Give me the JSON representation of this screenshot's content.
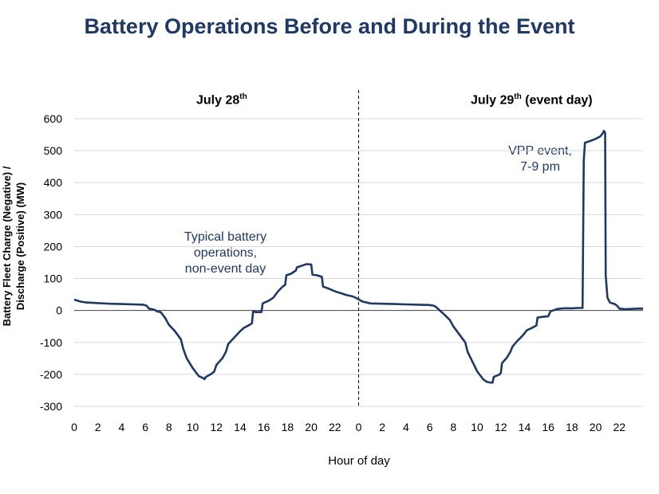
{
  "chart_data": {
    "type": "line",
    "title": "Battery Operations Before and During the Event",
    "xlabel": "Hour of day",
    "ylabel_line1": "Battery Fleet Charge (Negative) /",
    "ylabel_line2": "Discharge (Positive) (MW)",
    "ylim": [
      -300,
      600
    ],
    "yticks": [
      -300,
      -200,
      -100,
      0,
      100,
      200,
      300,
      400,
      500,
      600
    ],
    "xticks": [
      "0",
      "2",
      "4",
      "6",
      "8",
      "10",
      "12",
      "14",
      "16",
      "18",
      "20",
      "22",
      "0",
      "2",
      "4",
      "6",
      "8",
      "10",
      "12",
      "14",
      "16",
      "18",
      "20",
      "22"
    ],
    "grid": true,
    "panels": [
      {
        "label_main": "July 28",
        "label_sup": "th",
        "label_rest": ""
      },
      {
        "label_main": "July 29",
        "label_sup": "th",
        "label_rest": " (event day)"
      }
    ],
    "annotations": [
      {
        "lines": [
          "Typical battery",
          "operations,",
          "non-event day"
        ]
      },
      {
        "lines": [
          "VPP event,",
          "7-9 pm"
        ]
      }
    ],
    "series": [
      {
        "color": "#1f3864",
        "points": [
          [
            0,
            34
          ],
          [
            0.5,
            28
          ],
          [
            1,
            25
          ],
          [
            2,
            23
          ],
          [
            3,
            21
          ],
          [
            4,
            20
          ],
          [
            5,
            19
          ],
          [
            5.8,
            18
          ],
          [
            6.1,
            15
          ],
          [
            6.3,
            6
          ],
          [
            6.8,
            2
          ],
          [
            7,
            -3
          ],
          [
            7.3,
            -5
          ],
          [
            7.7,
            -25
          ],
          [
            8,
            -45
          ],
          [
            8.5,
            -65
          ],
          [
            9,
            -90
          ],
          [
            9.2,
            -120
          ],
          [
            9.5,
            -150
          ],
          [
            10,
            -180
          ],
          [
            10.5,
            -205
          ],
          [
            10.9,
            -212
          ],
          [
            11,
            -215
          ],
          [
            11.1,
            -208
          ],
          [
            11.5,
            -200
          ],
          [
            11.8,
            -192
          ],
          [
            12,
            -170
          ],
          [
            12.5,
            -150
          ],
          [
            12.8,
            -130
          ],
          [
            13,
            -105
          ],
          [
            13.5,
            -85
          ],
          [
            14,
            -65
          ],
          [
            14.3,
            -55
          ],
          [
            14.8,
            -45
          ],
          [
            15,
            -40
          ],
          [
            15.1,
            -2
          ],
          [
            15.3,
            -5
          ],
          [
            15.8,
            -5
          ],
          [
            15.9,
            22
          ],
          [
            16.4,
            30
          ],
          [
            16.8,
            40
          ],
          [
            17.2,
            60
          ],
          [
            17.6,
            75
          ],
          [
            17.8,
            80
          ],
          [
            17.9,
            110
          ],
          [
            18.3,
            115
          ],
          [
            18.7,
            125
          ],
          [
            18.8,
            135
          ],
          [
            19.2,
            140
          ],
          [
            19.6,
            145
          ],
          [
            20,
            144
          ],
          [
            20.1,
            112
          ],
          [
            20.5,
            110
          ],
          [
            20.9,
            105
          ],
          [
            21,
            75
          ],
          [
            21.5,
            68
          ],
          [
            22,
            60
          ],
          [
            22.5,
            54
          ],
          [
            23,
            48
          ],
          [
            23.5,
            44
          ],
          [
            24,
            35
          ],
          [
            24.3,
            28
          ],
          [
            25,
            22
          ],
          [
            26,
            21
          ],
          [
            27,
            20
          ],
          [
            28,
            19
          ],
          [
            29,
            18
          ],
          [
            30,
            17
          ],
          [
            30.3,
            15
          ],
          [
            30.5,
            12
          ],
          [
            30.8,
            2
          ],
          [
            31,
            -5
          ],
          [
            31.3,
            -15
          ],
          [
            31.7,
            -30
          ],
          [
            32,
            -50
          ],
          [
            32.5,
            -75
          ],
          [
            33,
            -100
          ],
          [
            33.2,
            -130
          ],
          [
            33.6,
            -160
          ],
          [
            34,
            -190
          ],
          [
            34.5,
            -215
          ],
          [
            34.8,
            -223
          ],
          [
            35,
            -225
          ],
          [
            35.3,
            -226
          ],
          [
            35.4,
            -208
          ],
          [
            35.9,
            -200
          ],
          [
            36,
            -195
          ],
          [
            36.1,
            -165
          ],
          [
            36.5,
            -148
          ],
          [
            36.8,
            -130
          ],
          [
            37,
            -112
          ],
          [
            37.4,
            -95
          ],
          [
            37.8,
            -80
          ],
          [
            38.2,
            -62
          ],
          [
            38.6,
            -55
          ],
          [
            39,
            -47
          ],
          [
            39.1,
            -22
          ],
          [
            39.5,
            -20
          ],
          [
            40,
            -18
          ],
          [
            40.2,
            -2
          ],
          [
            40.4,
            0
          ],
          [
            40.8,
            5
          ],
          [
            41.3,
            7
          ],
          [
            42,
            7
          ],
          [
            42.5,
            8
          ],
          [
            42.9,
            8
          ],
          [
            43,
            470
          ],
          [
            43.1,
            525
          ],
          [
            43.5,
            530
          ],
          [
            44,
            537
          ],
          [
            44.4,
            545
          ],
          [
            44.6,
            555
          ],
          [
            44.7,
            562
          ],
          [
            44.8,
            555
          ],
          [
            44.85,
            110
          ],
          [
            45,
            40
          ],
          [
            45.2,
            25
          ],
          [
            45.6,
            20
          ],
          [
            45.8,
            15
          ],
          [
            46,
            6
          ],
          [
            46.5,
            4
          ],
          [
            47,
            5
          ],
          [
            47.5,
            6
          ],
          [
            48,
            6
          ]
        ]
      }
    ]
  }
}
